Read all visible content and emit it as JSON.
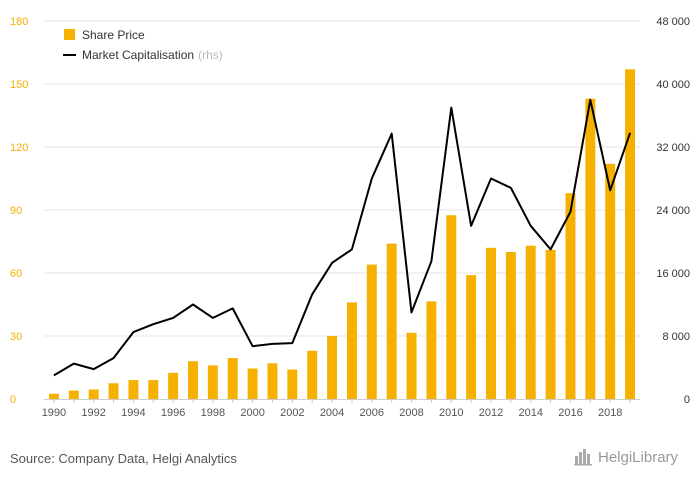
{
  "chart_data": {
    "type": "bar+line",
    "categories": [
      "1990",
      "1991",
      "1992",
      "1993",
      "1994",
      "1995",
      "1996",
      "1997",
      "1998",
      "1999",
      "2000",
      "2001",
      "2002",
      "2003",
      "2004",
      "2005",
      "2006",
      "2007",
      "2008",
      "2009",
      "2010",
      "2011",
      "2012",
      "2013",
      "2014",
      "2015",
      "2016",
      "2017",
      "2018",
      "2019"
    ],
    "x_tick_labels": [
      "1990",
      "1992",
      "1994",
      "1996",
      "1998",
      "2000",
      "2002",
      "2004",
      "2006",
      "2008",
      "2010",
      "2012",
      "2014",
      "2016",
      "2018"
    ],
    "series": [
      {
        "name": "Share Price",
        "kind": "bar",
        "axis": "left",
        "color": "#f5b000",
        "values": [
          2.5,
          4,
          4.5,
          7.5,
          9,
          9,
          12.5,
          18,
          16,
          19.5,
          14.5,
          17,
          14,
          23,
          30,
          46,
          64,
          74,
          31.5,
          46.5,
          87.5,
          59,
          72,
          70,
          73,
          71,
          98,
          143,
          112,
          157
        ]
      },
      {
        "name": "Market Capitalisation",
        "kind": "line",
        "axis": "right",
        "color": "#000000",
        "values": [
          3000,
          4500,
          3800,
          5200,
          8500,
          9500,
          10300,
          12000,
          10300,
          11500,
          6700,
          7000,
          7100,
          13300,
          17300,
          19000,
          28000,
          33700,
          11000,
          17500,
          37000,
          22000,
          28000,
          26800,
          22000,
          19000,
          23800,
          38000,
          26500,
          33800
        ]
      }
    ],
    "legend": {
      "placement": "top-left",
      "share_price": "Share Price",
      "market_cap": "Market Capitalisation",
      "market_cap_suffix": "(rhs)"
    },
    "y_left": {
      "min": 0,
      "max": 180,
      "ticks": [
        0,
        30,
        60,
        90,
        120,
        150,
        180
      ],
      "tick_labels": [
        "0",
        "30",
        "60",
        "90",
        "120",
        "150",
        "180"
      ],
      "color": "#f5b000"
    },
    "y_right": {
      "min": 0,
      "max": 48000,
      "ticks": [
        0,
        8000,
        16000,
        24000,
        32000,
        40000,
        48000
      ],
      "tick_labels": [
        "0",
        "8 000",
        "16 000",
        "24 000",
        "32 000",
        "40 000",
        "48 000"
      ],
      "color": "#333333"
    },
    "grid": true
  },
  "footer": {
    "source": "Source: Company Data, Helgi Analytics",
    "brand": "HelgiLibrary"
  },
  "icons": {
    "brand_logo": "city-skyline-icon"
  }
}
